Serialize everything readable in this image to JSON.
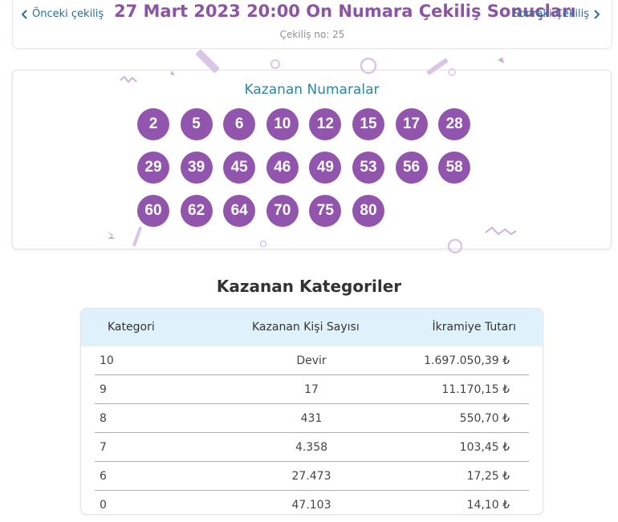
{
  "header": {
    "prev_label": "Önceki çekiliş",
    "next_label": "Sonraki Çekiliş",
    "title": "27 Mart 2023 20:00 On Numara Çekiliş Sonuçları",
    "draw_no": "Çekiliş no: 25"
  },
  "numbers": {
    "title": "Kazanan Numaralar",
    "balls": [
      "2",
      "5",
      "6",
      "10",
      "12",
      "15",
      "17",
      "28",
      "29",
      "39",
      "45",
      "46",
      "49",
      "53",
      "56",
      "58",
      "60",
      "62",
      "64",
      "70",
      "75",
      "80"
    ]
  },
  "categories": {
    "title": "Kazanan Kategoriler",
    "headers": [
      "Kategori",
      "Kazanan Kişi Sayısı",
      "İkramiye Tutarı"
    ],
    "rows": [
      {
        "cat": "10",
        "count": "Devir",
        "prize": "1.697.050,39 ₺"
      },
      {
        "cat": "9",
        "count": "17",
        "prize": "11.170,15 ₺"
      },
      {
        "cat": "8",
        "count": "431",
        "prize": "550,70 ₺"
      },
      {
        "cat": "7",
        "count": "4.358",
        "prize": "103,45 ₺"
      },
      {
        "cat": "6",
        "count": "27.473",
        "prize": "17,25 ₺"
      },
      {
        "cat": "0",
        "count": "47.103",
        "prize": "14,10 ₺"
      }
    ]
  },
  "colors": {
    "accent_purple": "#9255ad",
    "title_purple": "#8b54a5",
    "link_blue": "#2a6f93",
    "header_bg": "#dff1fb"
  }
}
